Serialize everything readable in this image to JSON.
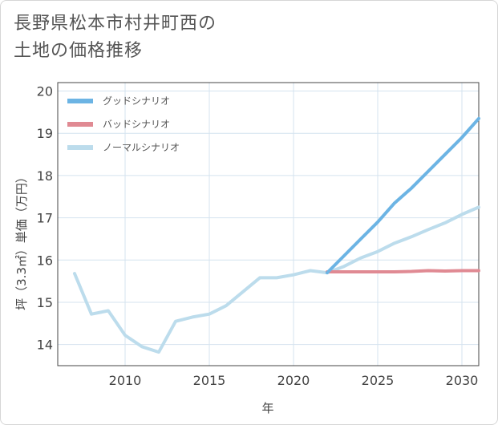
{
  "title": {
    "line1": "長野県松本市村井町西の",
    "line2": "土地の価格推移"
  },
  "chart_data": {
    "type": "line",
    "xlabel": "年",
    "ylabel": "坪（3.3㎡）単価（万円）",
    "xlim": [
      2006,
      2031
    ],
    "ylim": [
      13.5,
      20.2
    ],
    "x_ticks": [
      2010,
      2015,
      2020,
      2025,
      2030
    ],
    "y_ticks": [
      14,
      15,
      16,
      17,
      18,
      19,
      20
    ],
    "grid": true,
    "legend_position": "top-left",
    "series": [
      {
        "name": "グッドシナリオ",
        "color": "#6cb4e4",
        "x": [
          2022,
          2023,
          2024,
          2025,
          2026,
          2027,
          2028,
          2029,
          2030,
          2031
        ],
        "y": [
          15.7,
          16.1,
          16.5,
          16.9,
          17.35,
          17.7,
          18.1,
          18.5,
          18.9,
          19.35
        ]
      },
      {
        "name": "バッドシナリオ",
        "color": "#e08a93",
        "x": [
          2022,
          2023,
          2024,
          2025,
          2026,
          2027,
          2028,
          2029,
          2030,
          2031
        ],
        "y": [
          15.72,
          15.72,
          15.72,
          15.72,
          15.72,
          15.73,
          15.75,
          15.74,
          15.75,
          15.75
        ]
      },
      {
        "name": "ノーマルシナリオ",
        "color": "#bcdcec",
        "x": [
          2007,
          2008,
          2009,
          2010,
          2011,
          2012,
          2013,
          2014,
          2015,
          2016,
          2017,
          2018,
          2019,
          2020,
          2021,
          2022,
          2023,
          2024,
          2025,
          2026,
          2027,
          2028,
          2029,
          2030,
          2031
        ],
        "y": [
          15.68,
          14.72,
          14.8,
          14.22,
          13.95,
          13.82,
          14.55,
          14.65,
          14.72,
          14.92,
          15.25,
          15.58,
          15.58,
          15.65,
          15.75,
          15.7,
          15.85,
          16.05,
          16.2,
          16.4,
          16.55,
          16.72,
          16.88,
          17.08,
          17.25
        ]
      }
    ]
  }
}
